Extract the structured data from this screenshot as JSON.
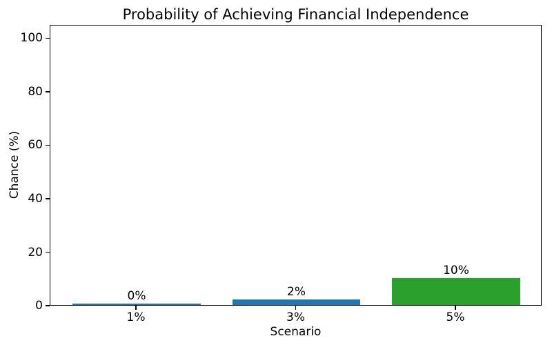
{
  "chart_data": {
    "type": "bar",
    "title": "Probability of Achieving Financial Independence",
    "xlabel": "Scenario",
    "ylabel": "Chance (%)",
    "categories": [
      "1%",
      "3%",
      "5%"
    ],
    "values": [
      0.5,
      2,
      10
    ],
    "bar_labels": [
      "0%",
      "2%",
      "10%"
    ],
    "bar_colors": [
      "#1f77b4",
      "#1f77b4",
      "#2ca02c"
    ],
    "ylim": [
      0,
      105
    ],
    "yticks": [
      0,
      20,
      40,
      60,
      80,
      100
    ],
    "grid": false,
    "legend": "none",
    "background_color": "#ffffff",
    "spine_color": "#000000",
    "text_color": "#000000"
  }
}
